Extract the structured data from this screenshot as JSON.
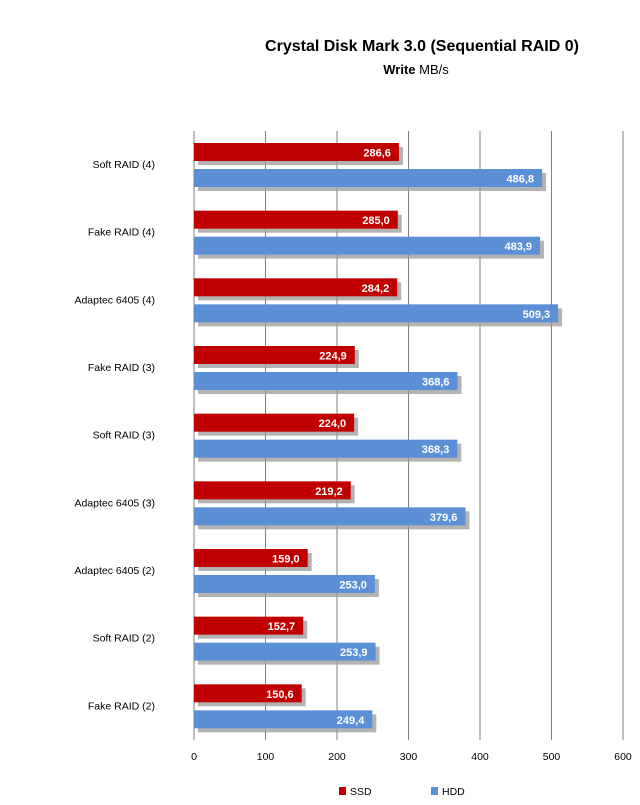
{
  "chart_data": {
    "type": "bar",
    "orientation": "horizontal",
    "title": "Crystal Disk Mark 3.0 (Sequential RAID 0)",
    "subtitle_bold": "Write",
    "subtitle_rest": " MB/s",
    "categories": [
      "Soft RAID (4)",
      "Fake RAID (4)",
      "Adaptec 6405 (4)",
      "Fake RAID (3)",
      "Soft RAID (3)",
      "Adaptec 6405 (3)",
      "Adaptec 6405 (2)",
      "Soft RAID (2)",
      "Fake RAID (2)"
    ],
    "series": [
      {
        "name": "SSD",
        "color": "#c00000",
        "values": [
          286.6,
          285.0,
          284.2,
          224.9,
          224.0,
          219.2,
          159.0,
          152.7,
          150.6
        ],
        "labels": [
          "286,6",
          "285,0",
          "284,2",
          "224,9",
          "224,0",
          "219,2",
          "159,0",
          "152,7",
          "150,6"
        ]
      },
      {
        "name": "HDD",
        "color": "#5b8fd6",
        "values": [
          486.8,
          483.9,
          509.3,
          368.6,
          368.3,
          379.6,
          253.0,
          253.9,
          249.4
        ],
        "labels": [
          "486,8",
          "483,9",
          "509,3",
          "368,6",
          "368,3",
          "379,6",
          "253,0",
          "253,9",
          "249,4"
        ]
      }
    ],
    "xlim": [
      0,
      600
    ],
    "ticks": [
      0,
      100,
      200,
      300,
      400,
      500,
      600
    ],
    "grid": true,
    "legend": "bottom"
  }
}
